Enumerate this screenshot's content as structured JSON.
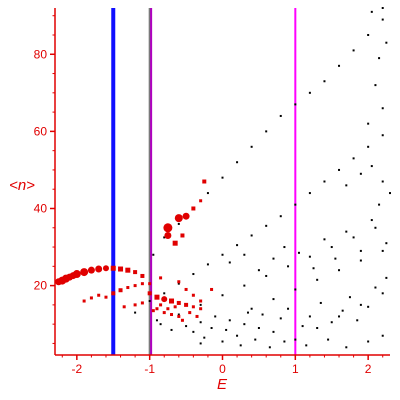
{
  "chart_data": {
    "type": "scatter",
    "title": "",
    "xlabel": "E",
    "ylabel": "<n>",
    "xlim": [
      -2.3,
      2.3
    ],
    "ylim": [
      2,
      92
    ],
    "xticks": [
      -2,
      -1,
      0,
      1,
      2
    ],
    "yticks": [
      20,
      40,
      60,
      80
    ],
    "xtick_labels": [
      "-2",
      "-1",
      "0",
      "1",
      "2"
    ],
    "ytick_labels": [
      "20",
      "40",
      "60",
      "80"
    ],
    "grid": false,
    "colors": {
      "axis": "#e00000",
      "black_points": "#000000",
      "red_points": "#e00000"
    },
    "vertical_lines": [
      {
        "x": -1.5,
        "color": "#1010ff"
      },
      {
        "x": -1.0,
        "color": "#7a7a7a"
      },
      {
        "x": -0.98,
        "color": "#b000c0"
      },
      {
        "x": 1.0,
        "color": "#ff00ff"
      }
    ],
    "series": [
      {
        "color": "#000000",
        "marker": "dot",
        "points": [
          [
            -0.95,
            28
          ],
          [
            -0.8,
            32.5
          ],
          [
            -0.6,
            36
          ],
          [
            -0.4,
            40
          ],
          [
            -0.2,
            44
          ],
          [
            0.0,
            48
          ],
          [
            0.2,
            52
          ],
          [
            0.4,
            56
          ],
          [
            0.6,
            60
          ],
          [
            0.8,
            64
          ],
          [
            1.0,
            67
          ],
          [
            1.2,
            70
          ],
          [
            1.4,
            73
          ],
          [
            1.6,
            77
          ],
          [
            1.8,
            81
          ],
          [
            2.0,
            85
          ],
          [
            2.2,
            89
          ],
          [
            -1.2,
            13
          ],
          [
            -1.0,
            16
          ],
          [
            -0.8,
            18
          ],
          [
            -0.6,
            20.5
          ],
          [
            -0.4,
            23
          ],
          [
            -0.2,
            25.5
          ],
          [
            0.0,
            28
          ],
          [
            0.2,
            30.5
          ],
          [
            0.4,
            33
          ],
          [
            0.6,
            35.5
          ],
          [
            0.8,
            38
          ],
          [
            1.0,
            41
          ],
          [
            1.2,
            44
          ],
          [
            1.4,
            47
          ],
          [
            1.6,
            50
          ],
          [
            1.8,
            53
          ],
          [
            2.0,
            56
          ],
          [
            2.2,
            59
          ],
          [
            -0.9,
            11
          ],
          [
            -0.6,
            12.5
          ],
          [
            -0.3,
            15
          ],
          [
            0.0,
            17.5
          ],
          [
            0.3,
            20
          ],
          [
            0.6,
            22.5
          ],
          [
            0.9,
            25
          ],
          [
            1.2,
            27.5
          ],
          [
            1.5,
            30
          ],
          [
            1.8,
            32.5
          ],
          [
            2.1,
            35
          ],
          [
            0.4,
            14
          ],
          [
            0.7,
            16.5
          ],
          [
            1.0,
            19
          ],
          [
            1.3,
            21.5
          ],
          [
            1.6,
            24
          ],
          [
            1.9,
            26.5
          ],
          [
            2.2,
            29
          ],
          [
            1.0,
            6
          ],
          [
            1.3,
            9
          ],
          [
            1.6,
            12
          ],
          [
            1.9,
            15
          ],
          [
            2.2,
            18
          ],
          [
            -0.85,
            10
          ],
          [
            -0.7,
            8.5
          ],
          [
            -0.5,
            9.5
          ],
          [
            -0.4,
            8
          ],
          [
            -0.3,
            10.5
          ],
          [
            -0.25,
            6.5
          ],
          [
            -0.15,
            9
          ],
          [
            -0.1,
            12
          ],
          [
            0.05,
            8.5
          ],
          [
            0.1,
            11
          ],
          [
            0.2,
            7
          ],
          [
            0.3,
            10
          ],
          [
            0.35,
            13
          ],
          [
            0.5,
            9
          ],
          [
            0.55,
            12.5
          ],
          [
            0.7,
            8
          ],
          [
            0.8,
            11.5
          ],
          [
            0.9,
            14
          ],
          [
            1.1,
            9.5
          ],
          [
            1.2,
            12
          ],
          [
            1.35,
            15.5
          ],
          [
            1.5,
            10.5
          ],
          [
            1.65,
            13.5
          ],
          [
            1.75,
            17
          ],
          [
            1.85,
            11
          ],
          [
            2.0,
            14.5
          ],
          [
            2.1,
            19.5
          ],
          [
            2.25,
            22
          ],
          [
            0.1,
            26
          ],
          [
            0.3,
            28
          ],
          [
            0.5,
            24
          ],
          [
            0.7,
            27
          ],
          [
            0.85,
            30
          ],
          [
            1.05,
            28.5
          ],
          [
            1.25,
            24.5
          ],
          [
            1.4,
            32
          ],
          [
            1.55,
            27
          ],
          [
            1.7,
            34
          ],
          [
            1.9,
            29
          ],
          [
            2.05,
            37
          ],
          [
            2.15,
            41
          ],
          [
            2.25,
            31
          ],
          [
            1.7,
            46
          ],
          [
            1.9,
            49
          ],
          [
            2.05,
            51
          ],
          [
            2.2,
            47
          ],
          [
            2.3,
            44
          ],
          [
            2.0,
            62
          ],
          [
            2.2,
            66
          ],
          [
            2.1,
            72
          ],
          [
            2.15,
            79
          ],
          [
            2.25,
            83
          ],
          [
            2.05,
            91
          ],
          [
            2.2,
            92
          ],
          [
            -0.3,
            5
          ],
          [
            0.0,
            5.5
          ],
          [
            0.25,
            4.5
          ],
          [
            0.45,
            6
          ],
          [
            0.65,
            4
          ],
          [
            0.85,
            5.5
          ],
          [
            1.15,
            4.5
          ],
          [
            1.45,
            6
          ],
          [
            1.7,
            4
          ],
          [
            2.0,
            5.5
          ],
          [
            2.2,
            7
          ]
        ]
      },
      {
        "color": "#e00000",
        "marker": "square",
        "points": [
          [
            -2.25,
            21,
            7
          ],
          [
            -2.2,
            21.3,
            8
          ],
          [
            -2.15,
            21.8,
            8
          ],
          [
            -2.1,
            22.2,
            7
          ],
          [
            -2.05,
            22.6,
            7
          ],
          [
            -2.0,
            23.0,
            8
          ],
          [
            -1.9,
            23.5,
            8
          ],
          [
            -1.8,
            24.0,
            7
          ],
          [
            -1.7,
            24.3,
            7
          ],
          [
            -1.6,
            24.5,
            6
          ],
          [
            -1.5,
            24.5,
            5
          ],
          [
            -1.4,
            24.3,
            5
          ],
          [
            -1.3,
            24.0,
            5
          ],
          [
            -1.2,
            23.5,
            4
          ],
          [
            -1.1,
            22.5,
            4
          ],
          [
            -0.75,
            35,
            9
          ],
          [
            -0.6,
            37.5,
            8
          ],
          [
            -0.5,
            38,
            7
          ],
          [
            -0.75,
            33,
            7
          ],
          [
            -0.65,
            31,
            5
          ],
          [
            -0.55,
            33,
            4
          ],
          [
            -0.4,
            40,
            4
          ],
          [
            -0.3,
            42,
            3
          ],
          [
            -0.25,
            47,
            4
          ],
          [
            -1.6,
            17,
            3
          ],
          [
            -1.5,
            18,
            4
          ],
          [
            -1.4,
            18.8,
            4
          ],
          [
            -1.3,
            19.5,
            3
          ],
          [
            -1.2,
            20,
            3
          ],
          [
            -1.1,
            20.5,
            3
          ],
          [
            -1.0,
            20.5,
            3
          ],
          [
            -1.9,
            16,
            3
          ],
          [
            -1.8,
            16.8,
            3
          ],
          [
            -1.7,
            17.5,
            3
          ],
          [
            -1.35,
            14.5,
            3
          ],
          [
            -1.2,
            15,
            3
          ],
          [
            -1.1,
            15.5,
            3
          ],
          [
            -1.0,
            18,
            4
          ],
          [
            -0.9,
            17,
            5
          ],
          [
            -0.8,
            16.5,
            6
          ],
          [
            -0.7,
            16,
            5
          ],
          [
            -0.6,
            15.5,
            4
          ],
          [
            -0.5,
            15,
            4
          ],
          [
            -0.4,
            14.5,
            3
          ],
          [
            -0.3,
            14,
            3
          ],
          [
            -0.9,
            14,
            3
          ],
          [
            -0.8,
            13,
            3
          ],
          [
            -0.7,
            12.5,
            3
          ],
          [
            -0.6,
            12,
            3
          ],
          [
            -0.55,
            11,
            3
          ],
          [
            -0.85,
            22,
            3
          ],
          [
            -0.6,
            21,
            3
          ],
          [
            -0.5,
            19,
            3
          ],
          [
            -0.4,
            17.5,
            3
          ],
          [
            -0.3,
            16,
            3
          ],
          [
            -0.15,
            19,
            3
          ],
          [
            -0.95,
            13.5,
            3
          ],
          [
            -0.85,
            15,
            3
          ],
          [
            -0.75,
            14,
            3
          ],
          [
            -0.65,
            14.5,
            3
          ],
          [
            -0.45,
            13,
            3
          ],
          [
            -0.35,
            12,
            3
          ]
        ]
      }
    ]
  }
}
